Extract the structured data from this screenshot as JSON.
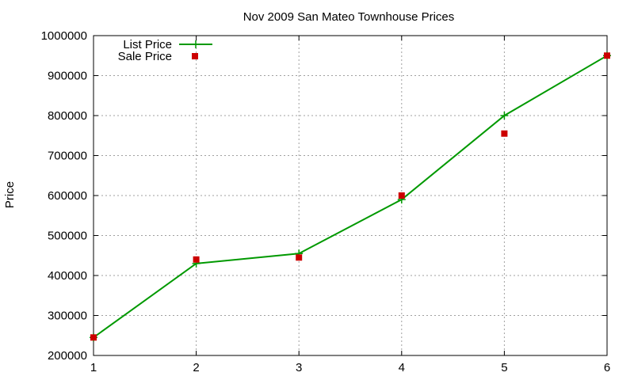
{
  "chart_data": {
    "type": "line",
    "title": "Nov 2009 San Mateo Townhouse Prices",
    "xlabel": "",
    "ylabel": "Price",
    "xlim": [
      1,
      6
    ],
    "ylim": [
      200000,
      1000000
    ],
    "x_ticks": [
      "1",
      "2",
      "3",
      "4",
      "5",
      "6"
    ],
    "y_ticks": [
      "200000",
      "300000",
      "400000",
      "500000",
      "600000",
      "700000",
      "800000",
      "900000",
      "1000000"
    ],
    "x_tick_values": [
      1,
      2,
      3,
      4,
      5,
      6
    ],
    "y_tick_values": [
      200000,
      300000,
      400000,
      500000,
      600000,
      700000,
      800000,
      900000,
      1000000
    ],
    "grid": true,
    "legend_position": "top-left",
    "series": [
      {
        "name": "List Price",
        "style": "line-with-plus",
        "color": "#009900",
        "x": [
          1,
          2,
          3,
          4,
          5,
          6
        ],
        "values": [
          245000,
          430000,
          455000,
          590000,
          800000,
          950000
        ]
      },
      {
        "name": "Sale Price",
        "style": "square-points",
        "color": "#cc0000",
        "x": [
          1,
          2,
          3,
          4,
          5,
          6
        ],
        "values": [
          245000,
          440000,
          445000,
          600000,
          755000,
          950000
        ]
      }
    ]
  }
}
